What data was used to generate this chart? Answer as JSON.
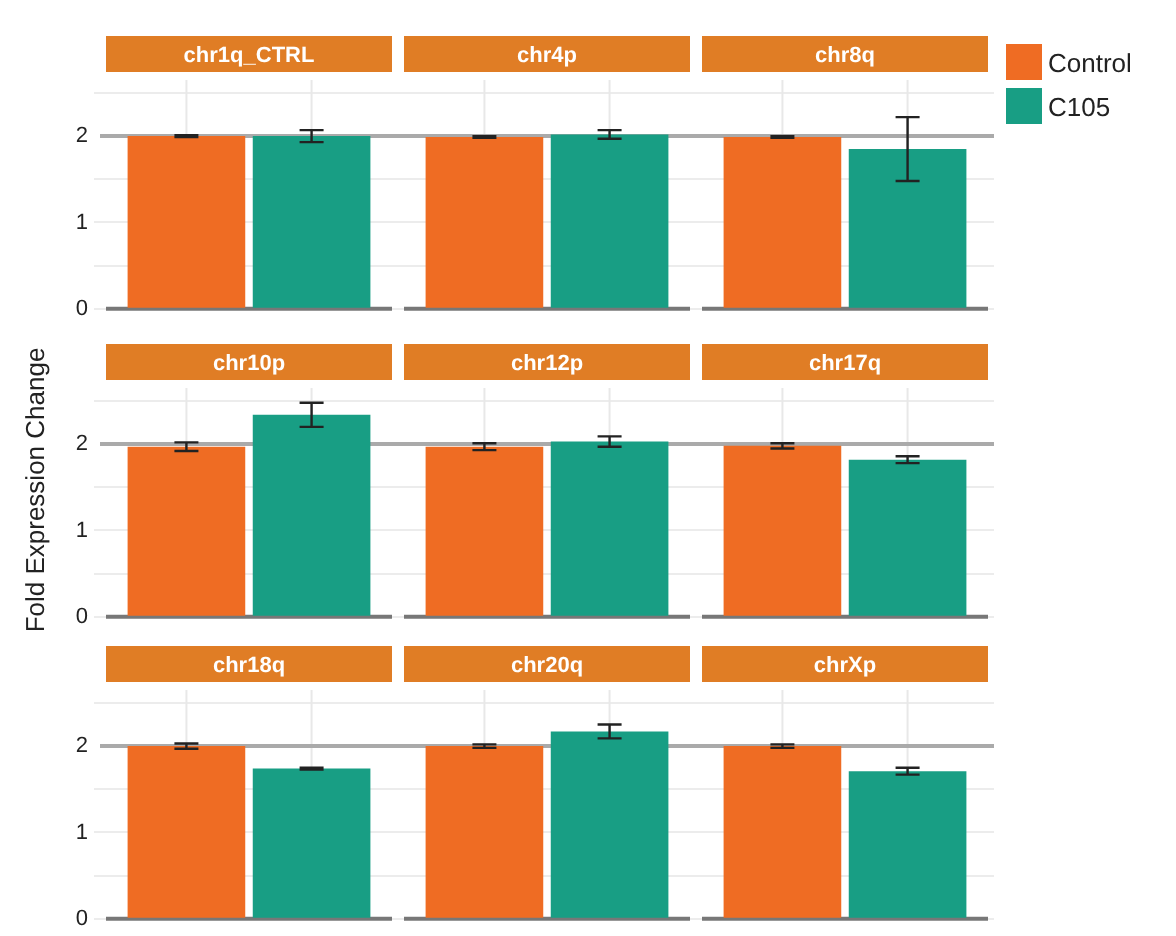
{
  "chart_data": [
    {
      "type": "bar",
      "categories": [
        "chr1q_CTRL",
        "chr4p",
        "chr8q"
      ],
      "series": [
        {
          "name": "Control",
          "color": "#ef6c23",
          "values": [
            2.0,
            1.99,
            1.99
          ],
          "errors": [
            0.01,
            0.01,
            0.01
          ]
        },
        {
          "name": "C105",
          "color": "#189e84",
          "values": [
            2.0,
            2.02,
            1.85
          ],
          "errors": [
            0.07,
            0.05,
            0.37
          ]
        }
      ],
      "ylim": [
        0,
        2.65
      ],
      "yticks": [
        0,
        {
          "value": 0.5,
          "label": null
        },
        1,
        {
          "value": 1.5,
          "label": null
        },
        2,
        {
          "value": 2.5,
          "label": null
        }
      ],
      "grid": true,
      "legend": "top right",
      "ref_lines": [
        {
          "axis": "y",
          "value": 2,
          "color": "#aaaaaa"
        }
      ]
    },
    {
      "type": "bar",
      "ylabel": "Fold Expression Change",
      "categories": [
        "chr10p",
        "chr12p",
        "chr17q"
      ],
      "series": [
        {
          "color": "#ef6c23",
          "values": [
            1.97,
            1.97,
            1.98
          ],
          "errors": [
            0.05,
            0.04,
            0.03
          ]
        },
        {
          "color": "#189e84",
          "values": [
            2.34,
            2.03,
            1.82
          ],
          "errors": [
            0.14,
            0.06,
            0.04
          ]
        }
      ],
      "ylim": [
        0,
        2.65
      ],
      "yticks": [
        0,
        {
          "value": 0.5,
          "label": null
        },
        1,
        {
          "value": 1.5,
          "label": null
        },
        2,
        {
          "value": 2.5,
          "label": null
        }
      ],
      "grid": true,
      "ref_lines": [
        {
          "axis": "y",
          "value": 2,
          "color": "#aaaaaa"
        }
      ]
    },
    {
      "type": "bar",
      "categories": [
        "chr18q",
        "chr20q",
        "chrXp"
      ],
      "series": [
        {
          "color": "#ef6c23",
          "values": [
            2.0,
            2.0,
            2.0
          ],
          "errors": [
            0.03,
            0.02,
            0.02
          ]
        },
        {
          "color": "#189e84",
          "values": [
            1.74,
            2.17,
            1.71
          ],
          "errors": [
            0.01,
            0.08,
            0.04
          ]
        }
      ],
      "ylim": [
        0,
        2.65
      ],
      "yticks": [
        0,
        {
          "value": 0.5,
          "label": null
        },
        1,
        {
          "value": 1.5,
          "label": null
        },
        2,
        {
          "value": 2.5,
          "label": null
        }
      ],
      "grid": true,
      "ref_lines": [
        {
          "axis": "y",
          "value": 2,
          "color": "#aaaaaa"
        }
      ]
    }
  ]
}
